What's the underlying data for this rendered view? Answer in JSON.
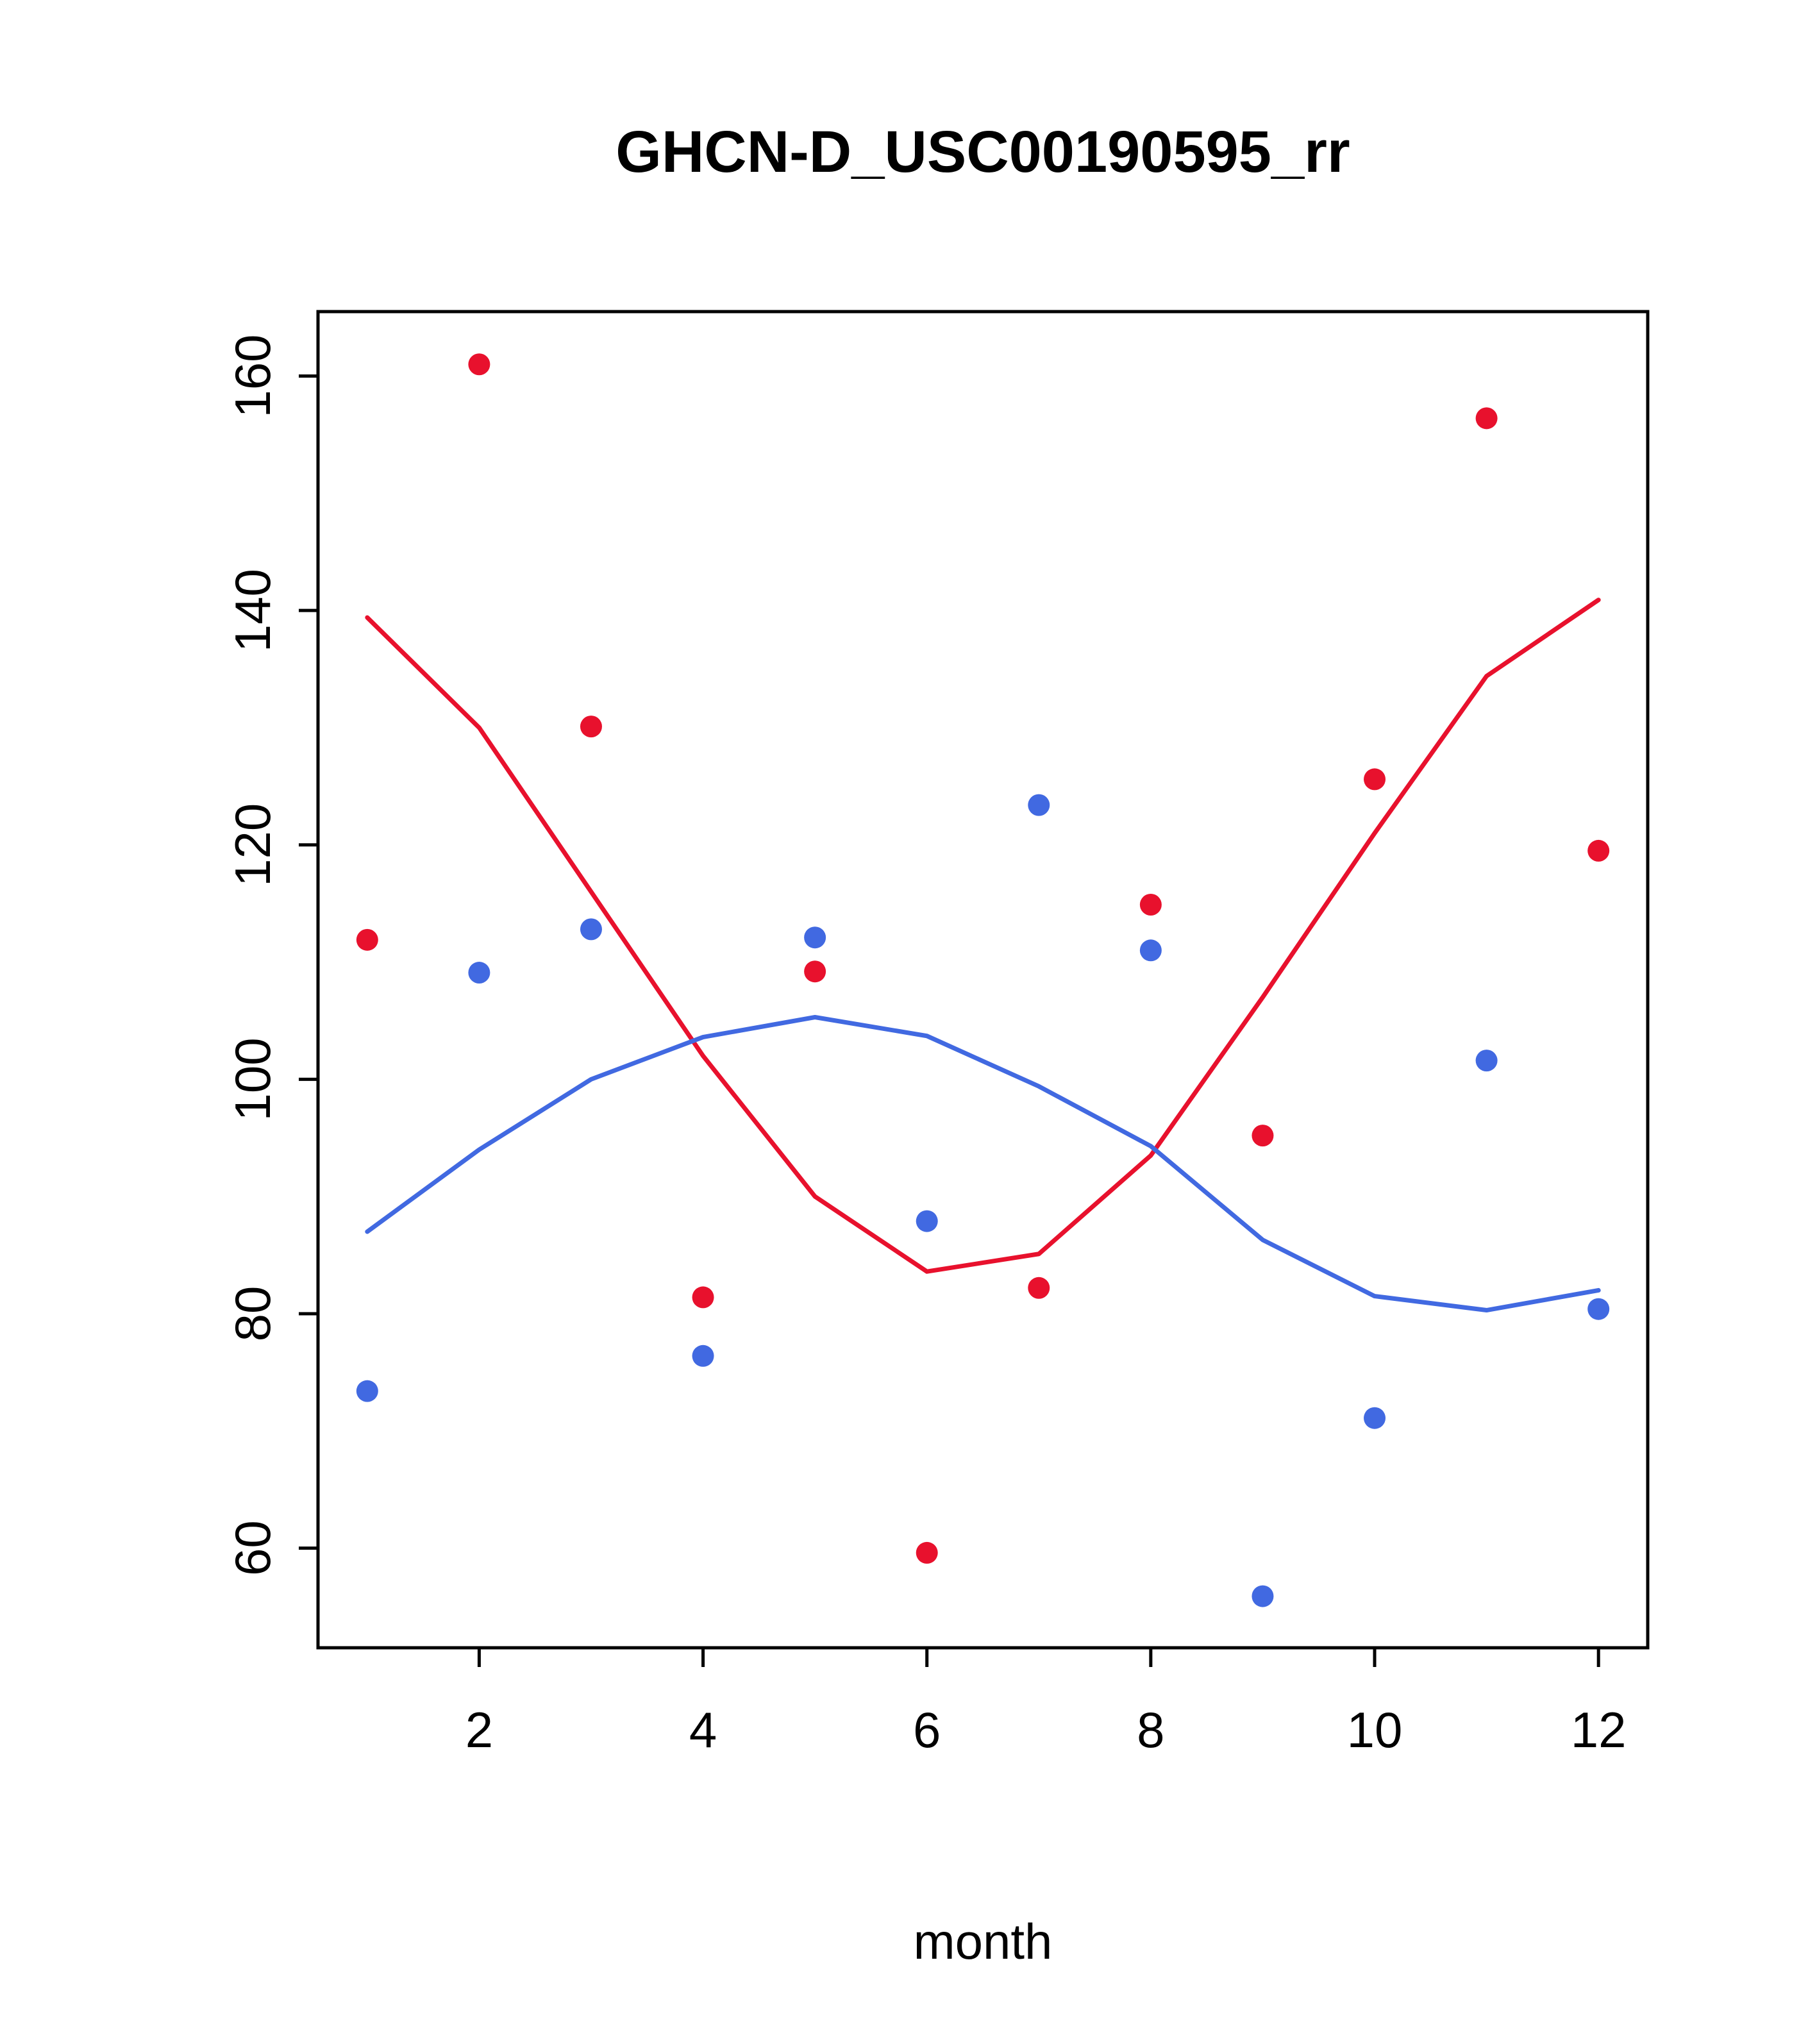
{
  "chart_data": {
    "type": "scatter",
    "title": "GHCN-D_USC00190595_rr",
    "xlabel": "month",
    "ylabel": "",
    "x": [
      1,
      2,
      3,
      4,
      5,
      6,
      7,
      8,
      9,
      10,
      11,
      12
    ],
    "xticks": [
      2,
      4,
      6,
      8,
      10,
      12
    ],
    "yticks": [
      60,
      80,
      100,
      120,
      140,
      160
    ],
    "xlim": [
      0.56,
      12.44
    ],
    "ylim": [
      51.5,
      165.5
    ],
    "grid": false,
    "legend": "none",
    "colors": {
      "red": "#e8112d",
      "blue": "#4169e1",
      "axis": "#000000"
    },
    "series": [
      {
        "name": "red-points",
        "kind": "points",
        "color": "#e8112d",
        "values": [
          111.9,
          161.0,
          130.1,
          81.4,
          109.2,
          59.6,
          82.2,
          114.9,
          95.2,
          125.6,
          156.4,
          119.5
        ]
      },
      {
        "name": "blue-points",
        "kind": "points",
        "color": "#4169e1",
        "values": [
          73.4,
          109.1,
          112.8,
          76.4,
          112.1,
          87.9,
          123.4,
          111.0,
          55.9,
          71.1,
          101.6,
          80.4
        ]
      },
      {
        "name": "red-trend-line",
        "kind": "line",
        "color": "#e8112d",
        "values": [
          139.4,
          130.0,
          116.0,
          102.0,
          90.0,
          83.6,
          85.1,
          93.5,
          107.0,
          121.0,
          134.4,
          140.9
        ]
      },
      {
        "name": "blue-trend-line",
        "kind": "line",
        "color": "#4169e1",
        "values": [
          87.0,
          94.0,
          100.0,
          103.6,
          105.3,
          103.7,
          99.4,
          94.3,
          86.3,
          81.5,
          80.3,
          82.0
        ]
      }
    ]
  }
}
